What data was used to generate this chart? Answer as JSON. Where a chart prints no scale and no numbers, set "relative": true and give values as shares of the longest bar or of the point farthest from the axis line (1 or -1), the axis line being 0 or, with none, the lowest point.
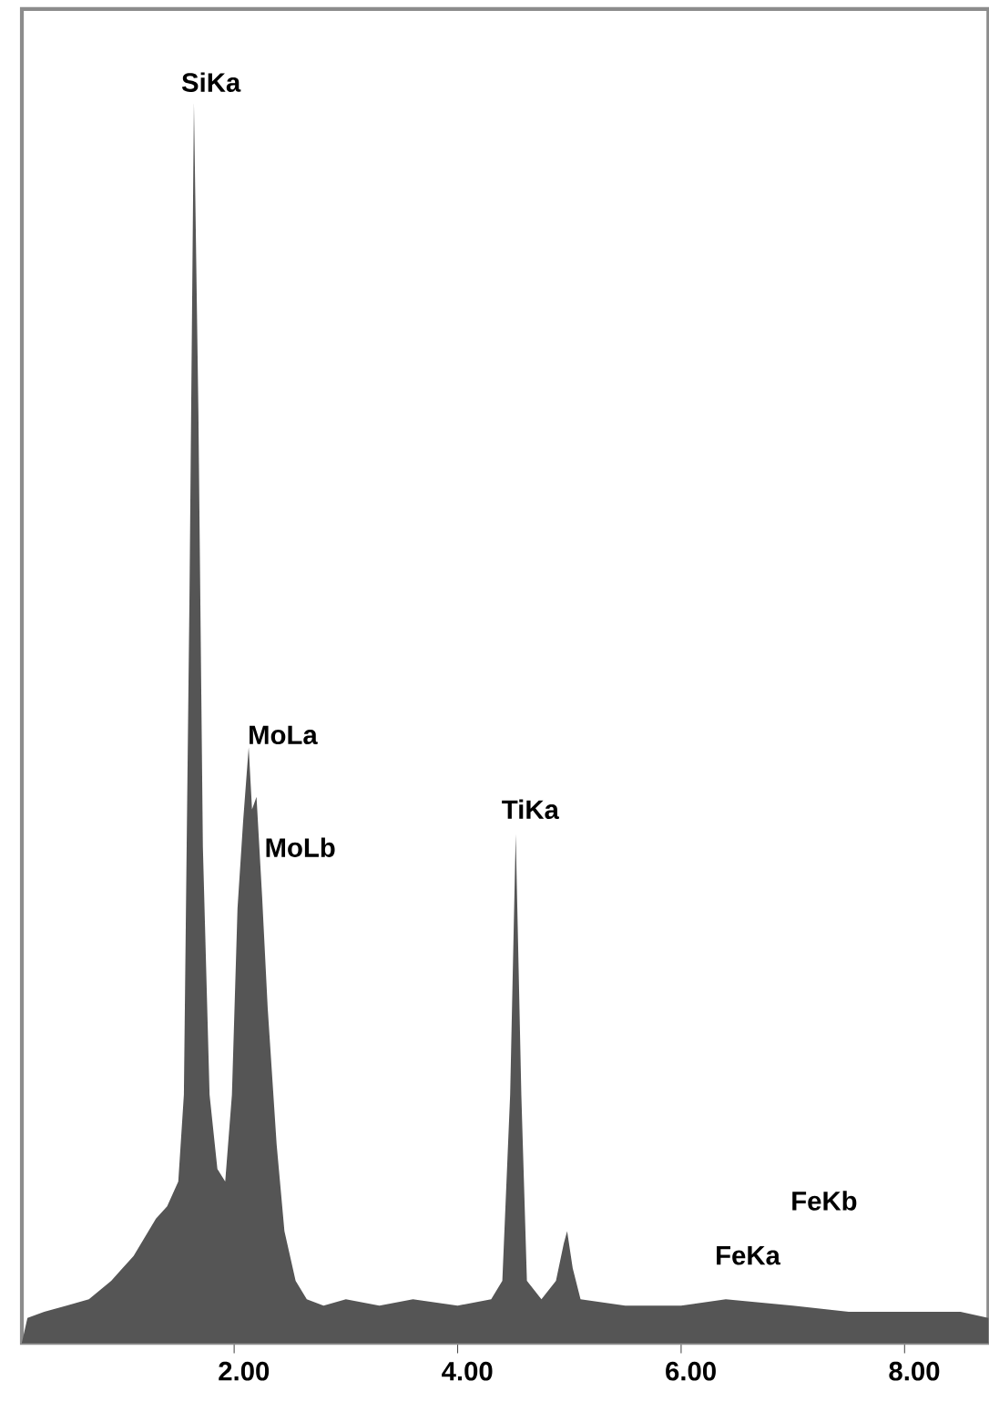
{
  "chart_data": {
    "type": "area",
    "relative": true,
    "color": "#555555",
    "x": [
      0.1,
      0.15,
      0.3,
      0.5,
      0.7,
      0.9,
      1.0,
      1.1,
      1.2,
      1.3,
      1.4,
      1.5,
      1.55,
      1.6,
      1.64,
      1.68,
      1.72,
      1.78,
      1.85,
      1.92,
      1.98,
      2.03,
      2.08,
      2.13,
      2.16,
      2.2,
      2.25,
      2.3,
      2.38,
      2.45,
      2.55,
      2.65,
      2.8,
      3.0,
      3.3,
      3.6,
      4.0,
      4.3,
      4.4,
      4.47,
      4.52,
      4.57,
      4.62,
      4.75,
      4.88,
      4.95,
      4.98,
      5.03,
      5.1,
      5.5,
      6.0,
      6.4,
      7.0,
      7.5,
      8.0,
      8.5,
      8.75
    ],
    "values": [
      0.0,
      0.02,
      0.025,
      0.03,
      0.035,
      0.05,
      0.06,
      0.07,
      0.085,
      0.1,
      0.11,
      0.13,
      0.2,
      0.6,
      1.0,
      0.75,
      0.4,
      0.2,
      0.14,
      0.13,
      0.2,
      0.35,
      0.42,
      0.48,
      0.43,
      0.44,
      0.36,
      0.27,
      0.16,
      0.09,
      0.05,
      0.035,
      0.03,
      0.035,
      0.03,
      0.035,
      0.03,
      0.035,
      0.05,
      0.2,
      0.41,
      0.2,
      0.05,
      0.035,
      0.05,
      0.08,
      0.09,
      0.06,
      0.035,
      0.03,
      0.03,
      0.035,
      0.03,
      0.025,
      0.025,
      0.025,
      0.02
    ],
    "xlim": [
      0.1,
      8.75
    ],
    "xticks": [
      {
        "value": 2,
        "label": "2.00"
      },
      {
        "value": 4,
        "label": "4.00"
      },
      {
        "value": 6,
        "label": "6.00"
      },
      {
        "value": 8,
        "label": "8.00"
      }
    ],
    "annotations": [
      {
        "text": "SiKa",
        "x": 1.64,
        "y": 1.0
      },
      {
        "text": "MoLa",
        "x": 2.13,
        "y": 0.48
      },
      {
        "text": "MoLb",
        "x": 2.2,
        "y": 0.44
      },
      {
        "text": "TiKa",
        "x": 4.52,
        "y": 0.41
      },
      {
        "text": "FeKa",
        "x": 6.4,
        "y": 0.035
      },
      "FeKb"
    ]
  }
}
